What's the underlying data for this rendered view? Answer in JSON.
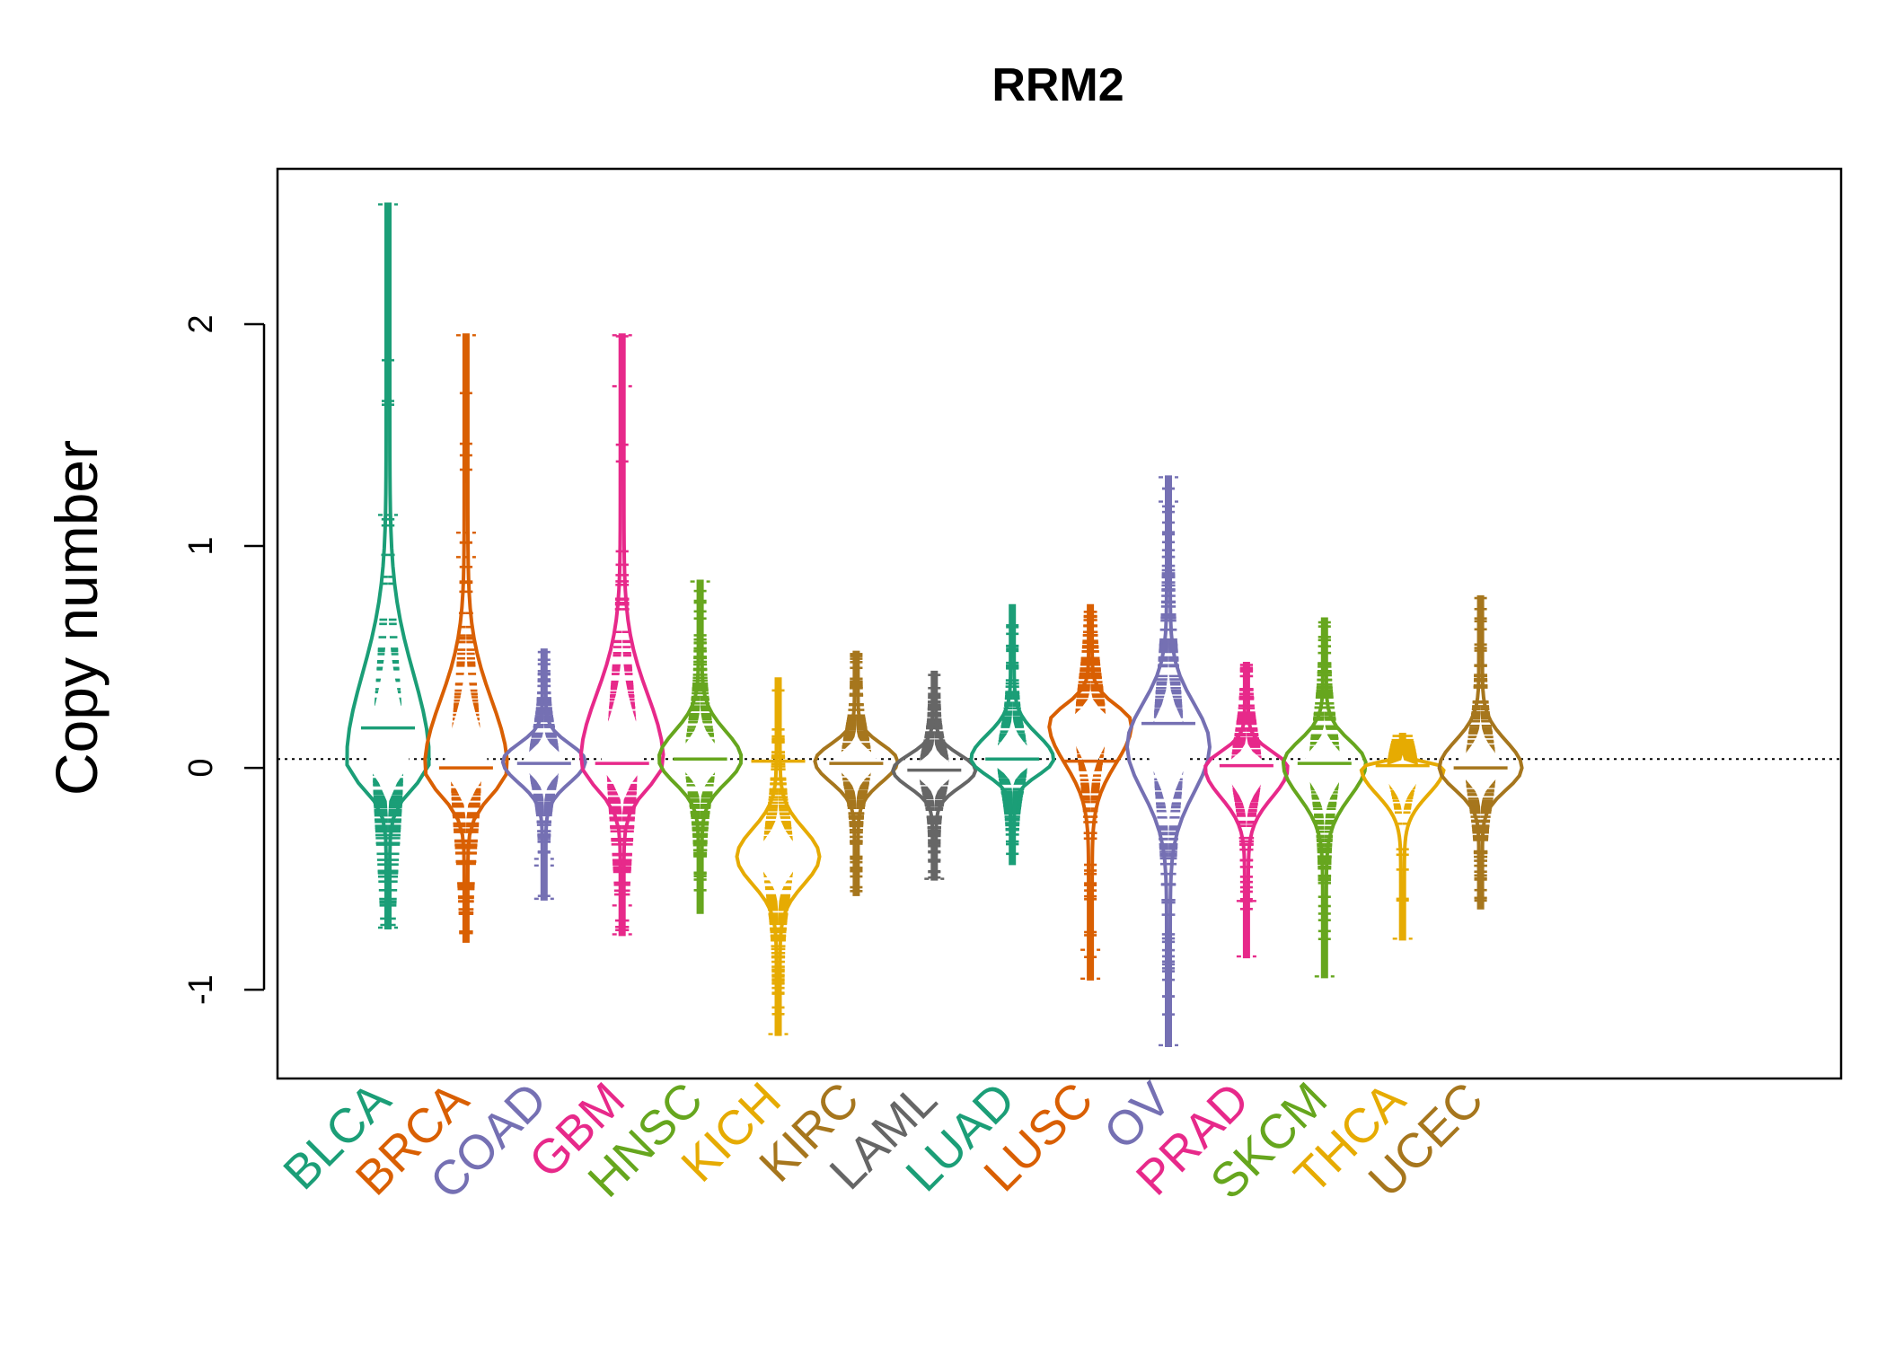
{
  "chart_data": {
    "type": "beanplot",
    "title": "RRM2",
    "ylabel": "Copy number",
    "xlabel": "",
    "ylim": [
      -1.4,
      2.7
    ],
    "yticks": [
      -1,
      0,
      1,
      2
    ],
    "ytick_labels": [
      "-1",
      "0",
      "1",
      "2"
    ],
    "reference_line": 0.04,
    "categories": [
      "BLCA",
      "BRCA",
      "COAD",
      "GBM",
      "HNSC",
      "KICH",
      "KIRC",
      "LAML",
      "LUAD",
      "LUSC",
      "OV",
      "PRAD",
      "SKCM",
      "THCA",
      "UCEC"
    ],
    "colors": [
      "#1b9e77",
      "#d95f02",
      "#7570b3",
      "#e7298a",
      "#66a61e",
      "#e6ab02",
      "#a6761d",
      "#666666",
      "#1b9e77",
      "#d95f02",
      "#7570b3",
      "#e7298a",
      "#66a61e",
      "#e6ab02",
      "#a6761d"
    ],
    "series": [
      {
        "name": "BLCA",
        "median": 0.18,
        "density_peak": 0.03,
        "min": -0.72,
        "max": 2.54,
        "outliers": [
          1.14,
          2.54,
          -0.72
        ]
      },
      {
        "name": "BRCA",
        "median": 0.0,
        "density_peak": 0.0,
        "min": -0.78,
        "max": 1.95,
        "outliers": [
          1.06,
          0.95,
          1.95
        ]
      },
      {
        "name": "COAD",
        "median": 0.02,
        "density_peak": 0.03,
        "min": -0.59,
        "max": 0.53,
        "outliers": [
          -0.41,
          -0.44,
          -0.59
        ]
      },
      {
        "name": "GBM",
        "median": 0.02,
        "density_peak": 0.03,
        "min": -0.75,
        "max": 1.95,
        "outliers": [
          1.72,
          1.95,
          -0.62,
          -0.75
        ]
      },
      {
        "name": "HNSC",
        "median": 0.04,
        "density_peak": 0.04,
        "min": -0.65,
        "max": 0.84,
        "outliers": [
          0.84
        ]
      },
      {
        "name": "KICH",
        "median": 0.03,
        "density_peak": -0.4,
        "min": -1.2,
        "max": 0.4,
        "outliers": [
          -1.2
        ]
      },
      {
        "name": "KIRC",
        "median": 0.02,
        "density_peak": 0.03,
        "min": -0.57,
        "max": 0.52,
        "outliers": []
      },
      {
        "name": "LAML",
        "median": -0.01,
        "density_peak": -0.01,
        "min": -0.5,
        "max": 0.43,
        "outliers": [
          -0.5
        ]
      },
      {
        "name": "LUAD",
        "median": 0.04,
        "density_peak": 0.04,
        "min": -0.43,
        "max": 0.73,
        "outliers": []
      },
      {
        "name": "LUSC",
        "median": 0.03,
        "density_peak": 0.2,
        "min": -0.95,
        "max": 0.73,
        "outliers": [
          -0.82,
          -0.95
        ]
      },
      {
        "name": "OV",
        "median": 0.2,
        "density_peak": 0.1,
        "min": -1.25,
        "max": 1.31,
        "outliers": [
          1.2,
          1.31,
          -1.25
        ]
      },
      {
        "name": "PRAD",
        "median": 0.01,
        "density_peak": 0.0,
        "min": -0.85,
        "max": 0.47,
        "outliers": [
          -0.6,
          -0.85
        ]
      },
      {
        "name": "SKCM",
        "median": 0.02,
        "density_peak": 0.02,
        "min": -0.94,
        "max": 0.67,
        "outliers": [
          -0.94
        ]
      },
      {
        "name": "THCA",
        "median": 0.01,
        "density_peak": 0.0,
        "min": -0.77,
        "max": 0.15,
        "outliers": [
          -0.77
        ]
      },
      {
        "name": "UCEC",
        "median": 0.0,
        "density_peak": 0.0,
        "min": -0.63,
        "max": 0.77,
        "outliers": []
      }
    ]
  }
}
